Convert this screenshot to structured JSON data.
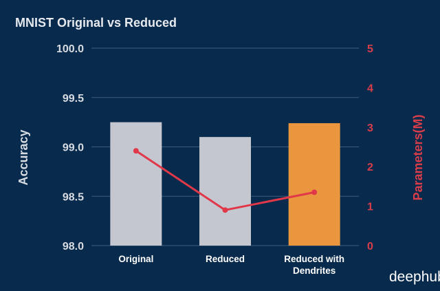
{
  "watermark": "deephub",
  "chart_data": {
    "type": "bar",
    "title": "MNIST Original vs Reduced",
    "categories": [
      "Original",
      "Reduced",
      "Reduced with Dendrites"
    ],
    "category_lines": [
      [
        "Original"
      ],
      [
        "Reduced"
      ],
      [
        "Reduced with",
        "Dendrites"
      ]
    ],
    "xlabel": "",
    "ylabel": "Accuracy",
    "y2label": "Parameters(M)",
    "ylim": [
      98.0,
      100.0
    ],
    "y2lim": [
      0,
      5
    ],
    "yticks": [
      "98.0",
      "98.5",
      "99.0",
      "99.5",
      "100.0"
    ],
    "y2ticks": [
      "0",
      "1",
      "2",
      "3",
      "4",
      "5"
    ],
    "grid": true,
    "series": [
      {
        "name": "",
        "kind": "bar",
        "axis": "left",
        "values": [
          99.25,
          99.1,
          99.24
        ],
        "colors": [
          "#c5c7d0",
          "#c5c7d0",
          "#e9963e"
        ]
      },
      {
        "name": "",
        "kind": "line",
        "axis": "right",
        "values": [
          2.4,
          0.9,
          1.35
        ],
        "color": "#e03848"
      }
    ]
  }
}
